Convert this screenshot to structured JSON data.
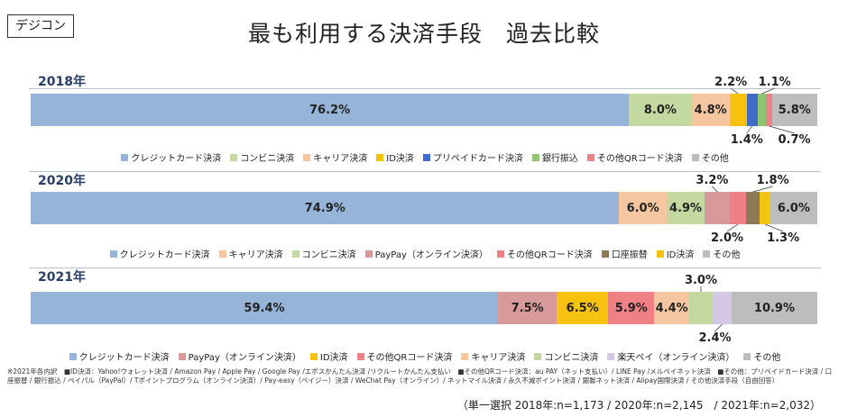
{
  "tag": "デジコン",
  "title": "最も利用する決済手段　過去比較",
  "chart_data": [
    {
      "type": "bar",
      "year": "2018年",
      "series": [
        {
          "name": "クレジットカード決済",
          "value": 76.2,
          "label": "76.2%",
          "color": "#96b4d8"
        },
        {
          "name": "コンビニ決済",
          "value": 8.0,
          "label": "8.0%",
          "color": "#c4d8a2"
        },
        {
          "name": "キャリア決済",
          "value": 4.8,
          "label": "4.8%",
          "color": "#f5c6a0"
        },
        {
          "name": "ID決済",
          "value": 2.2,
          "label": "2.2%",
          "color": "#f7c20e"
        },
        {
          "name": "プリペイドカード決済",
          "value": 1.4,
          "label": "1.4%",
          "color": "#3f6cc7"
        },
        {
          "name": "銀行振込",
          "value": 1.1,
          "label": "1.1%",
          "color": "#8fc56e"
        },
        {
          "name": "その他QRコード決済",
          "value": 0.7,
          "label": "0.7%",
          "color": "#ef8086"
        },
        {
          "name": "その他",
          "value": 5.8,
          "label": "5.8%",
          "color": "#bdbdbd"
        }
      ]
    },
    {
      "type": "bar",
      "year": "2020年",
      "series": [
        {
          "name": "クレジットカード決済",
          "value": 74.9,
          "label": "74.9%",
          "color": "#96b4d8"
        },
        {
          "name": "キャリア決済",
          "value": 6.0,
          "label": "6.0%",
          "color": "#f5c6a0"
        },
        {
          "name": "コンビニ決済",
          "value": 4.9,
          "label": "4.9%",
          "color": "#c4d8a2"
        },
        {
          "name": "PayPay（オンライン決済）",
          "value": 3.2,
          "label": "3.2%",
          "color": "#d8999a"
        },
        {
          "name": "その他QRコード決済",
          "value": 2.0,
          "label": "2.0%",
          "color": "#ef8086"
        },
        {
          "name": "口座振替",
          "value": 1.8,
          "label": "1.8%",
          "color": "#8c7a56"
        },
        {
          "name": "ID決済",
          "value": 1.3,
          "label": "1.3%",
          "color": "#f7c20e"
        },
        {
          "name": "その他",
          "value": 6.0,
          "label": "6.0%",
          "color": "#bdbdbd"
        }
      ]
    },
    {
      "type": "bar",
      "year": "2021年",
      "series": [
        {
          "name": "クレジットカード決済",
          "value": 59.4,
          "label": "59.4%",
          "color": "#96b4d8"
        },
        {
          "name": "PayPay（オンライン決済）",
          "value": 7.5,
          "label": "7.5%",
          "color": "#d8999a"
        },
        {
          "name": "ID決済",
          "value": 6.5,
          "label": "6.5%",
          "color": "#f7c20e"
        },
        {
          "name": "その他QRコード決済",
          "value": 5.9,
          "label": "5.9%",
          "color": "#ef8086"
        },
        {
          "name": "キャリア決済",
          "value": 4.4,
          "label": "4.4%",
          "color": "#f5c6a0"
        },
        {
          "name": "コンビニ決済",
          "value": 3.0,
          "label": "3.0%",
          "color": "#c4d8a2"
        },
        {
          "name": "楽天ペイ（オンライン決済）",
          "value": 2.4,
          "label": "2.4%",
          "color": "#d5c8e4"
        },
        {
          "name": "その他",
          "value": 10.9,
          "label": "10.9%",
          "color": "#bdbdbd"
        }
      ]
    }
  ],
  "footnote": "※2021年各内訳　■ID決済：Yahoo!ウォレット決済 / Amazon Pay / Apple Pay / Google Pay /エポスかんたん決済 /リクルートかんたん支払い　■その他QRコード決済：au PAY（ネット支払い）/ LINE Pay /メルペイネット決済　■その他：プリペイドカード決済 / 口座振替 / 銀行振込 / ペイパル（PayPal）/ Tポイントプログラム（オンライン決済）/ Pay-easy（ペイジー）決済 / WeChat Pay（オンライン）/ ネットマイル決済 / 永久不滅ポイント決済 / 銀聯ネット決済 / Alipay国際決済 / その他決済手段（自由回答）",
  "sample_note": "（単一選択 2018年:n=1,173 / 2020年:n=2,145　/ 2021年:n=2,032）"
}
